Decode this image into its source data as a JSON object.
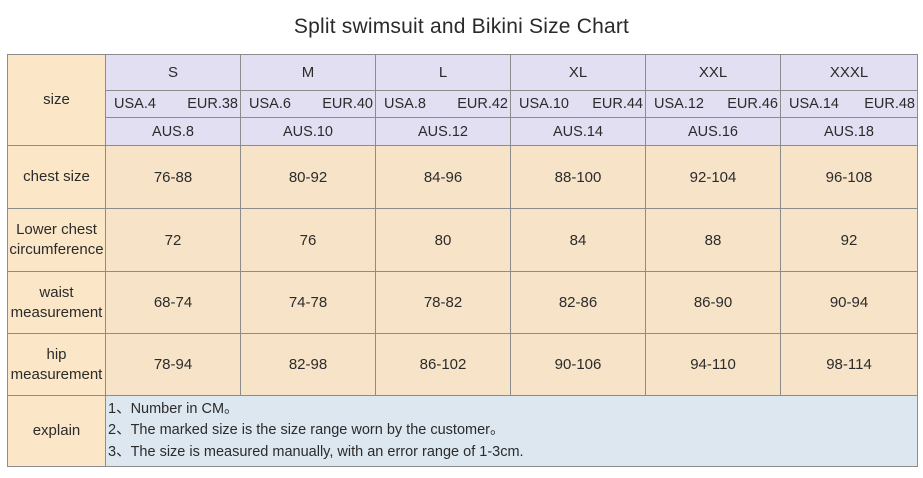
{
  "title": "Split swimsuit and Bikini Size Chart",
  "size_header": "size",
  "sizes": [
    {
      "label": "S",
      "usa": "USA.4",
      "eur": "EUR.38",
      "aus": "AUS.8"
    },
    {
      "label": "M",
      "usa": "USA.6",
      "eur": "EUR.40",
      "aus": "AUS.10"
    },
    {
      "label": "L",
      "usa": "USA.8",
      "eur": "EUR.42",
      "aus": "AUS.12"
    },
    {
      "label": "XL",
      "usa": "USA.10",
      "eur": "EUR.44",
      "aus": "AUS.14"
    },
    {
      "label": "XXL",
      "usa": "USA.12",
      "eur": "EUR.46",
      "aus": "AUS.16"
    },
    {
      "label": "XXXL",
      "usa": "USA.14",
      "eur": "EUR.48",
      "aus": "AUS.18"
    }
  ],
  "rows": [
    {
      "label_lines": [
        "chest size"
      ],
      "values": [
        "76-88",
        "80-92",
        "84-96",
        "88-100",
        "92-104",
        "96-108"
      ]
    },
    {
      "label_lines": [
        "Lower chest",
        "circumference"
      ],
      "values": [
        "72",
        "76",
        "80",
        "84",
        "88",
        "92"
      ]
    },
    {
      "label_lines": [
        "waist",
        "measurement"
      ],
      "values": [
        "68-74",
        "74-78",
        "78-82",
        "82-86",
        "86-90",
        "90-94"
      ]
    },
    {
      "label_lines": [
        "hip",
        "measurement"
      ],
      "values": [
        "78-94",
        "82-98",
        "86-102",
        "90-106",
        "94-110",
        "98-114"
      ]
    }
  ],
  "explain": {
    "label": "explain",
    "notes": [
      "1、Number in CM。",
      "2、The marked size is the size range worn by the customer。",
      "3、The size is measured manually, with an error range of 1-3cm."
    ]
  },
  "colors": {
    "header_bg": "#e2dff2",
    "body_bg": "#f7e4c8",
    "explain_bg": "#dde7f0",
    "border": "#8c8c8c"
  }
}
